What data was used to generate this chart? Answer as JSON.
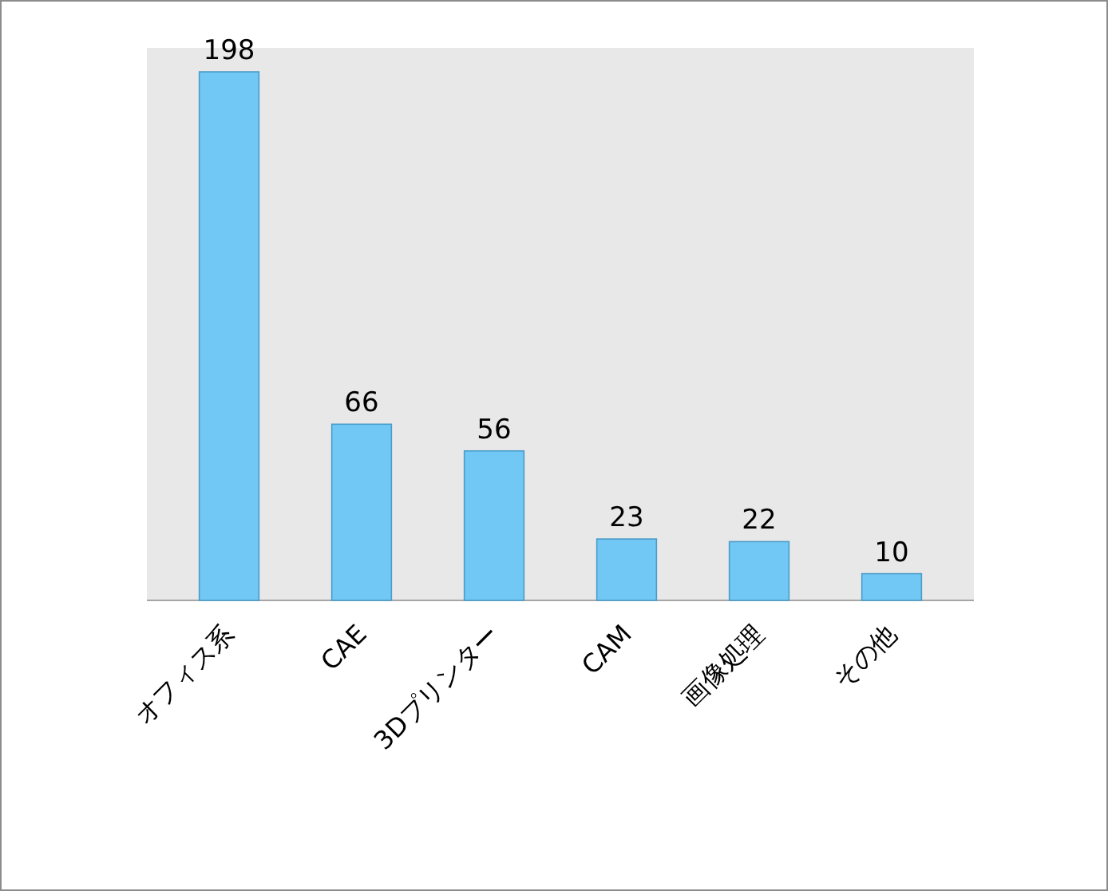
{
  "chart_data": {
    "type": "bar",
    "categories": [
      "オフィス系",
      "CAE",
      "3Dプリンター",
      "CAM",
      "画像処理",
      "その他"
    ],
    "values": [
      198,
      66,
      56,
      23,
      22,
      10
    ],
    "color": "#72c8f4",
    "data_labels": true
  }
}
